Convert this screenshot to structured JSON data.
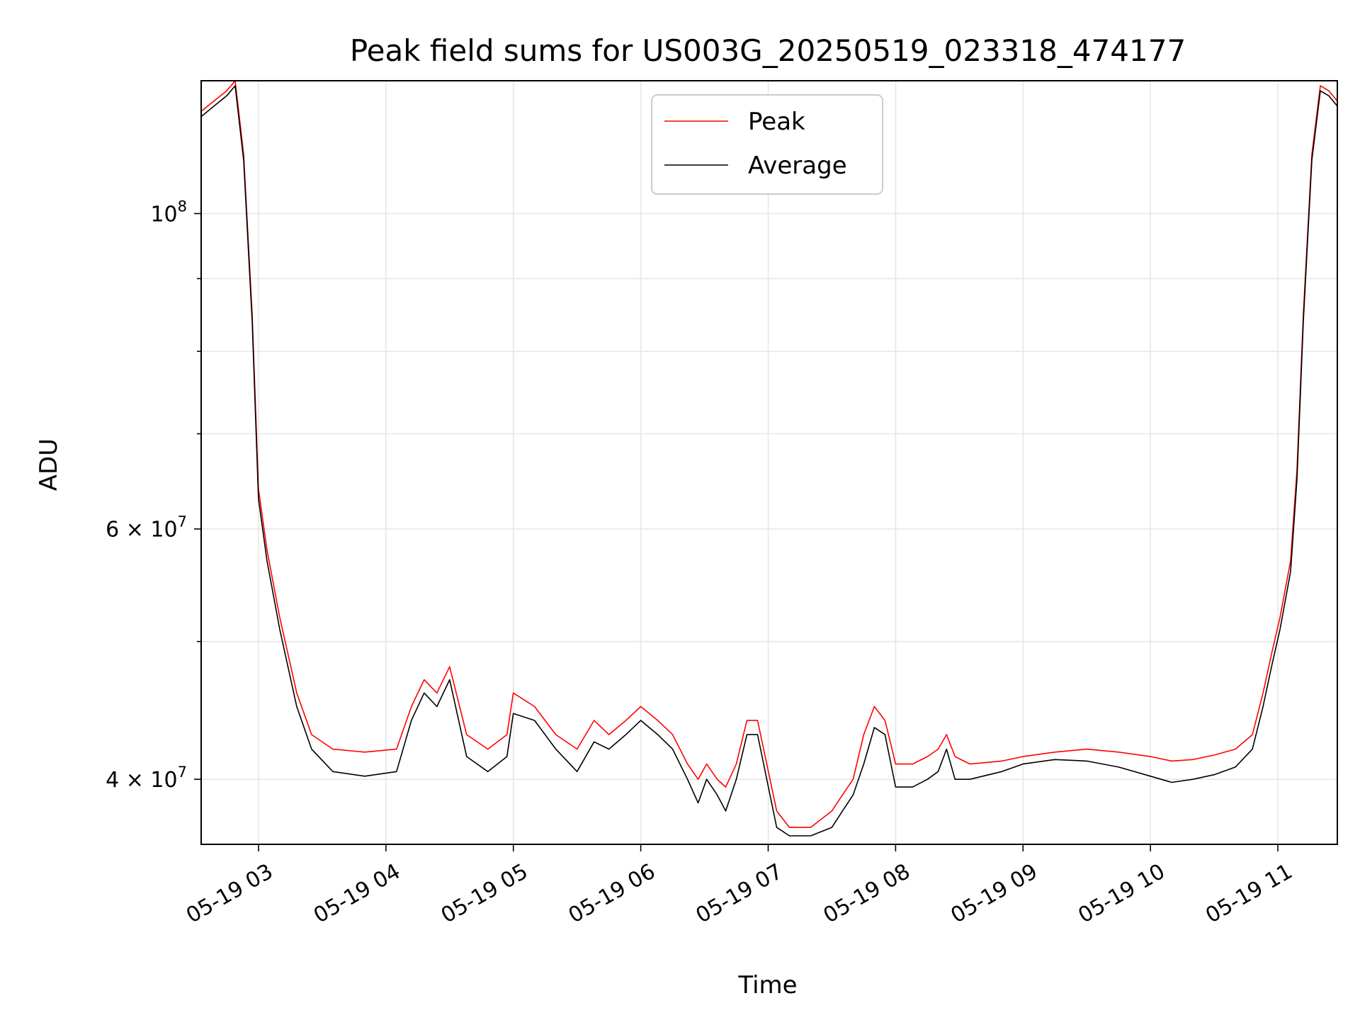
{
  "chart_data": {
    "type": "line",
    "title": "Peak field sums for US003G_20250519_023318_474177",
    "xlabel": "Time",
    "ylabel": "ADU",
    "x_scale": "time",
    "y_scale": "log",
    "xlim": [
      "2025-05-19 02:33",
      "2025-05-19 11:28"
    ],
    "ylim": [
      36000000,
      124000000
    ],
    "grid": true,
    "legend_position": "top-center",
    "x_ticks": [
      {
        "value": "2025-05-19 03:00",
        "label": "05-19 03"
      },
      {
        "value": "2025-05-19 04:00",
        "label": "05-19 04"
      },
      {
        "value": "2025-05-19 05:00",
        "label": "05-19 05"
      },
      {
        "value": "2025-05-19 06:00",
        "label": "05-19 06"
      },
      {
        "value": "2025-05-19 07:00",
        "label": "05-19 07"
      },
      {
        "value": "2025-05-19 08:00",
        "label": "05-19 08"
      },
      {
        "value": "2025-05-19 09:00",
        "label": "05-19 09"
      },
      {
        "value": "2025-05-19 10:00",
        "label": "05-19 10"
      },
      {
        "value": "2025-05-19 11:00",
        "label": "05-19 11"
      }
    ],
    "y_ticks_major": [
      {
        "value": 40000000,
        "mantissa": "4",
        "exponent": "7"
      },
      {
        "value": 60000000,
        "mantissa": "6",
        "exponent": "7"
      },
      {
        "value": 100000000,
        "mantissa": "",
        "exponent": "8"
      }
    ],
    "y_ticks_minor": [
      50000000,
      70000000,
      80000000,
      90000000
    ],
    "series": [
      {
        "name": "Peak",
        "color": "#ff0000",
        "x": [
          "2025-05-19 02:33",
          "2025-05-19 02:39",
          "2025-05-19 02:45",
          "2025-05-19 02:49",
          "2025-05-19 02:53",
          "2025-05-19 02:57",
          "2025-05-19 03:00",
          "2025-05-19 03:04",
          "2025-05-19 03:10",
          "2025-05-19 03:18",
          "2025-05-19 03:25",
          "2025-05-19 03:35",
          "2025-05-19 03:50",
          "2025-05-19 04:05",
          "2025-05-19 04:12",
          "2025-05-19 04:18",
          "2025-05-19 04:24",
          "2025-05-19 04:30",
          "2025-05-19 04:38",
          "2025-05-19 04:48",
          "2025-05-19 04:57",
          "2025-05-19 05:00",
          "2025-05-19 05:10",
          "2025-05-19 05:20",
          "2025-05-19 05:30",
          "2025-05-19 05:38",
          "2025-05-19 05:45",
          "2025-05-19 05:53",
          "2025-05-19 06:00",
          "2025-05-19 06:08",
          "2025-05-19 06:15",
          "2025-05-19 06:22",
          "2025-05-19 06:27",
          "2025-05-19 06:31",
          "2025-05-19 06:36",
          "2025-05-19 06:40",
          "2025-05-19 06:45",
          "2025-05-19 06:50",
          "2025-05-19 06:55",
          "2025-05-19 07:04",
          "2025-05-19 07:10",
          "2025-05-19 07:20",
          "2025-05-19 07:30",
          "2025-05-19 07:35",
          "2025-05-19 07:40",
          "2025-05-19 07:45",
          "2025-05-19 07:50",
          "2025-05-19 07:55",
          "2025-05-19 08:00",
          "2025-05-19 08:08",
          "2025-05-19 08:15",
          "2025-05-19 08:20",
          "2025-05-19 08:24",
          "2025-05-19 08:28",
          "2025-05-19 08:35",
          "2025-05-19 08:50",
          "2025-05-19 09:00",
          "2025-05-19 09:15",
          "2025-05-19 09:30",
          "2025-05-19 09:45",
          "2025-05-19 10:00",
          "2025-05-19 10:10",
          "2025-05-19 10:20",
          "2025-05-19 10:30",
          "2025-05-19 10:40",
          "2025-05-19 10:48",
          "2025-05-19 10:53",
          "2025-05-19 10:57",
          "2025-05-19 11:01",
          "2025-05-19 11:06",
          "2025-05-19 11:09",
          "2025-05-19 11:12",
          "2025-05-19 11:16",
          "2025-05-19 11:20",
          "2025-05-19 11:24",
          "2025-05-19 11:28"
        ],
        "y": [
          118000000,
          120000000,
          122000000,
          124000000,
          110000000,
          85000000,
          64000000,
          58000000,
          52000000,
          46000000,
          43000000,
          42000000,
          41800000,
          42000000,
          45000000,
          47000000,
          46000000,
          48000000,
          43000000,
          42000000,
          43000000,
          46000000,
          45000000,
          43000000,
          42000000,
          44000000,
          43000000,
          44000000,
          45000000,
          44000000,
          43000000,
          41000000,
          40000000,
          41000000,
          40000000,
          39500000,
          41000000,
          44000000,
          44000000,
          38000000,
          37000000,
          37000000,
          38000000,
          39000000,
          40000000,
          43000000,
          45000000,
          44000000,
          41000000,
          41000000,
          41500000,
          42000000,
          43000000,
          41500000,
          41000000,
          41200000,
          41500000,
          41800000,
          42000000,
          41800000,
          41500000,
          41200000,
          41300000,
          41600000,
          42000000,
          43000000,
          46000000,
          49000000,
          52000000,
          57000000,
          66000000,
          85000000,
          110000000,
          123000000,
          122000000,
          120000000
        ]
      },
      {
        "name": "Average",
        "color": "#000000",
        "x": [
          "2025-05-19 02:33",
          "2025-05-19 02:39",
          "2025-05-19 02:45",
          "2025-05-19 02:49",
          "2025-05-19 02:53",
          "2025-05-19 02:57",
          "2025-05-19 03:00",
          "2025-05-19 03:04",
          "2025-05-19 03:10",
          "2025-05-19 03:18",
          "2025-05-19 03:25",
          "2025-05-19 03:35",
          "2025-05-19 03:50",
          "2025-05-19 04:05",
          "2025-05-19 04:12",
          "2025-05-19 04:18",
          "2025-05-19 04:24",
          "2025-05-19 04:30",
          "2025-05-19 04:38",
          "2025-05-19 04:48",
          "2025-05-19 04:57",
          "2025-05-19 05:00",
          "2025-05-19 05:10",
          "2025-05-19 05:20",
          "2025-05-19 05:30",
          "2025-05-19 05:38",
          "2025-05-19 05:45",
          "2025-05-19 05:53",
          "2025-05-19 06:00",
          "2025-05-19 06:08",
          "2025-05-19 06:15",
          "2025-05-19 06:22",
          "2025-05-19 06:27",
          "2025-05-19 06:31",
          "2025-05-19 06:36",
          "2025-05-19 06:40",
          "2025-05-19 06:45",
          "2025-05-19 06:50",
          "2025-05-19 06:55",
          "2025-05-19 07:04",
          "2025-05-19 07:10",
          "2025-05-19 07:20",
          "2025-05-19 07:30",
          "2025-05-19 07:35",
          "2025-05-19 07:40",
          "2025-05-19 07:45",
          "2025-05-19 07:50",
          "2025-05-19 07:55",
          "2025-05-19 08:00",
          "2025-05-19 08:08",
          "2025-05-19 08:15",
          "2025-05-19 08:20",
          "2025-05-19 08:24",
          "2025-05-19 08:28",
          "2025-05-19 08:35",
          "2025-05-19 08:50",
          "2025-05-19 09:00",
          "2025-05-19 09:15",
          "2025-05-19 09:30",
          "2025-05-19 09:45",
          "2025-05-19 10:00",
          "2025-05-19 10:10",
          "2025-05-19 10:20",
          "2025-05-19 10:30",
          "2025-05-19 10:40",
          "2025-05-19 10:48",
          "2025-05-19 10:53",
          "2025-05-19 10:57",
          "2025-05-19 11:01",
          "2025-05-19 11:06",
          "2025-05-19 11:09",
          "2025-05-19 11:12",
          "2025-05-19 11:16",
          "2025-05-19 11:20",
          "2025-05-19 11:24",
          "2025-05-19 11:28"
        ],
        "y": [
          117000000,
          119000000,
          121000000,
          123000000,
          109000000,
          84000000,
          63000000,
          57000000,
          51000000,
          45000000,
          42000000,
          40500000,
          40200000,
          40500000,
          44000000,
          46000000,
          45000000,
          47000000,
          41500000,
          40500000,
          41500000,
          44500000,
          44000000,
          42000000,
          40500000,
          42500000,
          42000000,
          43000000,
          44000000,
          43000000,
          42000000,
          40000000,
          38500000,
          40000000,
          39000000,
          38000000,
          40000000,
          43000000,
          43000000,
          37000000,
          36500000,
          36500000,
          37000000,
          38000000,
          39000000,
          41000000,
          43500000,
          43000000,
          39500000,
          39500000,
          40000000,
          40500000,
          42000000,
          40000000,
          40000000,
          40500000,
          41000000,
          41300000,
          41200000,
          40800000,
          40200000,
          39800000,
          40000000,
          40300000,
          40800000,
          42000000,
          45000000,
          48000000,
          51000000,
          56000000,
          65000000,
          84000000,
          109000000,
          122000000,
          121000000,
          119000000
        ]
      }
    ]
  }
}
